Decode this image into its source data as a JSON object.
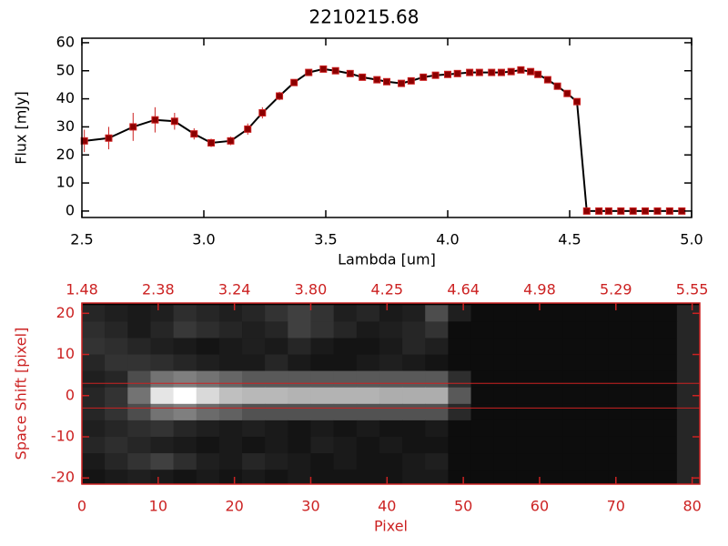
{
  "chart_data": [
    {
      "type": "line",
      "title": "2210215.68",
      "x_label": "Lambda [um]",
      "y_label": "Flux [mJy]",
      "xlim": [
        2.5,
        5.0
      ],
      "xticks": [
        2.5,
        {
          "value": 3,
          "label": "3.0"
        },
        3.5,
        {
          "value": 4,
          "label": "4.0"
        },
        4.5,
        {
          "value": 5,
          "label": "5.0"
        }
      ],
      "ylim": [
        -2.3,
        61.6
      ],
      "yticks": [
        0,
        10,
        20,
        30,
        40,
        50,
        60
      ],
      "color": "#000000",
      "marker_color": "#8b0000",
      "error_color": "#cc2222",
      "axis_color": "#000000",
      "x": [
        2.51,
        2.61,
        2.71,
        2.8,
        2.88,
        2.96,
        3.03,
        3.11,
        3.18,
        3.24,
        3.31,
        3.37,
        3.43,
        3.49,
        3.54,
        3.6,
        3.65,
        3.71,
        3.75,
        3.81,
        3.85,
        3.9,
        3.95,
        4.0,
        4.04,
        4.09,
        4.13,
        4.18,
        4.22,
        4.26,
        4.3,
        4.34,
        4.37,
        4.41,
        4.45,
        4.49,
        4.53,
        4.57,
        4.62,
        4.66,
        4.71,
        4.76,
        4.81,
        4.86,
        4.91,
        4.96
      ],
      "values": [
        25,
        26,
        30,
        32.5,
        32,
        27.5,
        24.3,
        25,
        29.2,
        35,
        41,
        45.8,
        49.4,
        50.6,
        50,
        49,
        47.7,
        46.8,
        46.1,
        45.5,
        46.4,
        47.7,
        48.4,
        48.7,
        49,
        49.4,
        49.4,
        49.4,
        49.4,
        49.7,
        50.3,
        49.7,
        48.7,
        46.8,
        44.5,
        41.9,
        39,
        0,
        0,
        0,
        0,
        0,
        0,
        0,
        0,
        0
      ],
      "errors": [
        4,
        4,
        5,
        4.5,
        3,
        2,
        1.5,
        1.5,
        2,
        2,
        1.5,
        1,
        1,
        1,
        0.8,
        0.8,
        0.8,
        0.8,
        0.8,
        0.8,
        0.8,
        0.8,
        0.8,
        0.8,
        0.8,
        0.8,
        0.8,
        0.8,
        0.8,
        0.8,
        1,
        1,
        1,
        1,
        1,
        1,
        1,
        0.3,
        0.3,
        0.3,
        0.3,
        0.3,
        0.3,
        0.3,
        0.3,
        0.3
      ]
    },
    {
      "type": "heatmap",
      "x_label": "Pixel",
      "y_label": "Space Shift [pixel]",
      "xlim": [
        0,
        81
      ],
      "xticks": [
        0,
        10,
        20,
        30,
        40,
        50,
        60,
        70,
        80
      ],
      "x2ticks": [
        {
          "value": 0,
          "label": "1.48"
        },
        {
          "value": 10,
          "label": "2.38"
        },
        {
          "value": 20,
          "label": "3.24"
        },
        {
          "value": 30,
          "label": "3.80"
        },
        {
          "value": 40,
          "label": "4.25"
        },
        {
          "value": 50,
          "label": "4.64"
        },
        {
          "value": 60,
          "label": "4.98"
        },
        {
          "value": 70,
          "label": "5.29"
        },
        {
          "value": 80,
          "label": "5.55"
        }
      ],
      "ylim": [
        -21.5,
        22.5
      ],
      "yticks": [
        -20,
        -10,
        0,
        10,
        20
      ],
      "axis_color": "#cc2222",
      "hlines": [
        3,
        -3
      ],
      "hline_color": "#cc2222",
      "x_edges": [
        0,
        3,
        6,
        9,
        12,
        15,
        18,
        21,
        24,
        27,
        30,
        33,
        36,
        39,
        42,
        45,
        48,
        51,
        54,
        57,
        60,
        63,
        66,
        69,
        72,
        75,
        78,
        81
      ],
      "y_edges": [
        22,
        18,
        14,
        10,
        6,
        2,
        -2,
        -6,
        -10,
        -14,
        -18,
        -22
      ],
      "z": [
        [
          15,
          12,
          10,
          12,
          18,
          15,
          12,
          15,
          20,
          25,
          20,
          12,
          15,
          10,
          12,
          30,
          12,
          5,
          5,
          5,
          5,
          5,
          5,
          5,
          5,
          5,
          15
        ],
        [
          18,
          15,
          10,
          15,
          22,
          18,
          15,
          12,
          15,
          25,
          20,
          15,
          10,
          12,
          15,
          20,
          5,
          5,
          5,
          5,
          5,
          5,
          5,
          5,
          5,
          5,
          15
        ],
        [
          20,
          18,
          15,
          12,
          10,
          8,
          10,
          12,
          10,
          15,
          10,
          8,
          8,
          10,
          15,
          12,
          5,
          5,
          5,
          5,
          5,
          5,
          5,
          5,
          5,
          5,
          15
        ],
        [
          15,
          20,
          20,
          18,
          15,
          12,
          10,
          10,
          15,
          10,
          8,
          8,
          10,
          12,
          10,
          8,
          5,
          5,
          5,
          5,
          5,
          5,
          5,
          5,
          5,
          5,
          15
        ],
        [
          12,
          15,
          30,
          45,
          50,
          45,
          40,
          35,
          35,
          35,
          35,
          35,
          35,
          35,
          35,
          35,
          18,
          5,
          5,
          5,
          5,
          5,
          5,
          5,
          5,
          5,
          15
        ],
        [
          15,
          20,
          45,
          90,
          100,
          85,
          75,
          72,
          72,
          70,
          70,
          70,
          70,
          68,
          68,
          68,
          35,
          5,
          5,
          5,
          5,
          5,
          5,
          5,
          5,
          5,
          15
        ],
        [
          15,
          20,
          30,
          45,
          50,
          42,
          38,
          32,
          32,
          32,
          32,
          32,
          32,
          32,
          32,
          32,
          16,
          5,
          5,
          5,
          5,
          5,
          5,
          5,
          5,
          5,
          15
        ],
        [
          12,
          15,
          18,
          20,
          15,
          12,
          10,
          12,
          10,
          8,
          10,
          8,
          10,
          8,
          8,
          10,
          5,
          5,
          5,
          5,
          5,
          5,
          5,
          5,
          5,
          5,
          15
        ],
        [
          15,
          18,
          15,
          12,
          10,
          8,
          10,
          8,
          10,
          8,
          12,
          10,
          8,
          10,
          8,
          8,
          5,
          5,
          5,
          5,
          5,
          5,
          5,
          5,
          5,
          5,
          15
        ],
        [
          10,
          15,
          20,
          25,
          18,
          12,
          10,
          15,
          12,
          10,
          8,
          10,
          8,
          8,
          10,
          12,
          5,
          5,
          5,
          5,
          5,
          5,
          5,
          5,
          5,
          5,
          15
        ],
        [
          8,
          10,
          12,
          10,
          8,
          10,
          8,
          10,
          8,
          10,
          8,
          8,
          8,
          8,
          10,
          10,
          5,
          5,
          5,
          5,
          5,
          5,
          5,
          5,
          5,
          5,
          15
        ]
      ]
    }
  ]
}
